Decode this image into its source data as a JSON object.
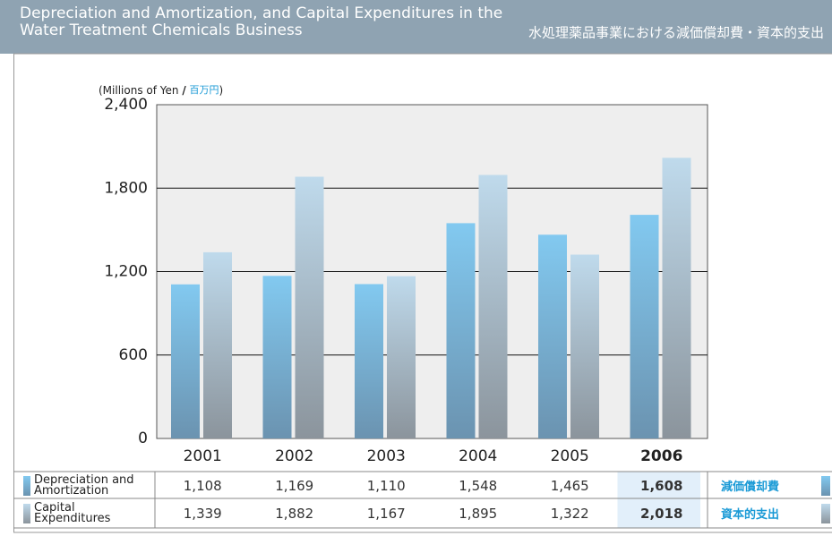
{
  "chart_data": {
    "type": "bar",
    "title": "Depreciation and Amortization, and Capital Expenditures in the Water Treatment Chemicals Business",
    "title_ja": "水処理薬品事業における減価償却費・資本的支出",
    "y_label": {
      "en": "(Millions of Yen",
      "sep": "/",
      "ja": "百万円",
      "close": ")"
    },
    "categories": [
      "2001",
      "2002",
      "2003",
      "2004",
      "2005",
      "2006"
    ],
    "highlight": "2006",
    "series": [
      {
        "name": "Depreciation and Amortization",
        "name_ja": "減価償却費",
        "color": "#82c9f0",
        "values": [
          1108,
          1169,
          1110,
          1548,
          1465,
          1608
        ],
        "value_labels": [
          "1,108",
          "1,169",
          "1,110",
          "1,548",
          "1,465",
          "1,608"
        ]
      },
      {
        "name": "Capital Expenditures",
        "name_ja": "資本的支出",
        "color": "#bfdaec",
        "values": [
          1339,
          1882,
          1167,
          1895,
          1322,
          2018
        ],
        "value_labels": [
          "1,339",
          "1,882",
          "1,167",
          "1,895",
          "1,322",
          "2,018"
        ]
      }
    ],
    "ylim": [
      0,
      2400
    ],
    "yticks": [
      0,
      600,
      {
        "value": 1200,
        "label": "1,200"
      },
      {
        "value": 1800,
        "label": "1,800"
      },
      {
        "value": 2400,
        "label": "2,400"
      }
    ],
    "grid": true
  }
}
